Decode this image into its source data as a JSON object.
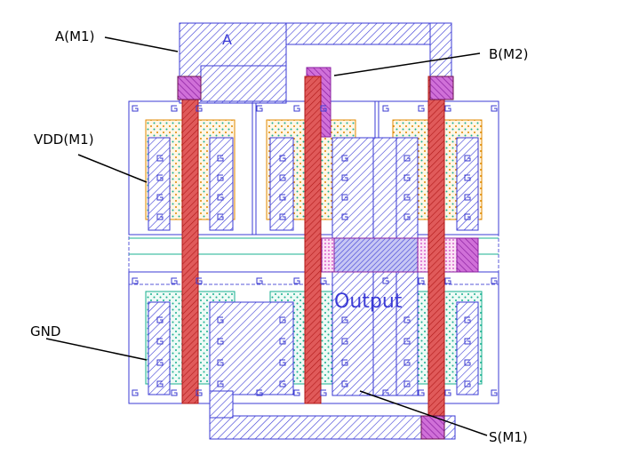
{
  "callouts": {
    "a_m1": "A(M1)",
    "b_m2": "B(M2)",
    "vdd_m1": "VDD(M1)",
    "gnd": "GND",
    "s_m1": "S(M1)"
  },
  "layer_labels": {
    "input_a": "A",
    "output": "Output"
  },
  "colors": {
    "metal1": "#3b3bd6",
    "metal2": "#b030c0",
    "poly": "#d03030",
    "pdiff": "#e08a00",
    "ndiff": "#18b090",
    "via": "#a0206a",
    "callout_line": "#000000"
  }
}
